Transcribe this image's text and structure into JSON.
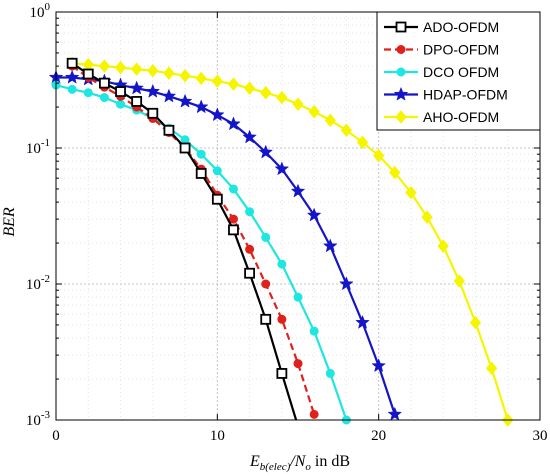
{
  "chart_data": {
    "type": "line",
    "title": "",
    "xlabel": "E_b(elec)/N_o in dB",
    "ylabel": "BER",
    "xlim": [
      0,
      30
    ],
    "ylim": [
      0.001,
      1
    ],
    "yscale": "log",
    "grid": true,
    "legend_position": "top-right",
    "x_ticks": [
      0,
      10,
      20,
      30
    ],
    "x_tick_labels": [
      "0",
      "10",
      "20",
      "30"
    ],
    "y_ticks": [
      0.001,
      0.01,
      0.1,
      1
    ],
    "series": [
      {
        "name": "ADO-OFDM",
        "color": "#000000",
        "line_style": "solid",
        "marker": "square-open",
        "x": [
          1,
          2,
          3,
          4,
          5,
          6,
          7,
          8,
          9,
          10,
          11,
          12,
          13,
          14,
          15
        ],
        "y": [
          0.42,
          0.35,
          0.3,
          0.26,
          0.22,
          0.18,
          0.135,
          0.1,
          0.065,
          0.042,
          0.025,
          0.012,
          0.0055,
          0.0022,
          0.0009
        ]
      },
      {
        "name": "DPO-OFDM",
        "color": "#e0201b",
        "line_style": "dashed",
        "marker": "circle-filled",
        "x": [
          1,
          2,
          3,
          4,
          5,
          6,
          7,
          8,
          9,
          10,
          11,
          12,
          13,
          14,
          15,
          16
        ],
        "y": [
          0.4,
          0.33,
          0.28,
          0.24,
          0.2,
          0.165,
          0.13,
          0.1,
          0.07,
          0.045,
          0.03,
          0.018,
          0.01,
          0.0055,
          0.0026,
          0.0011
        ]
      },
      {
        "name": "DCO OFDM",
        "color": "#1ee6e0",
        "line_style": "solid",
        "marker": "circle-filled",
        "x": [
          0,
          1,
          2,
          3,
          4,
          5,
          6,
          7,
          8,
          9,
          10,
          11,
          12,
          13,
          14,
          15,
          16,
          17,
          18
        ],
        "y": [
          0.29,
          0.27,
          0.255,
          0.235,
          0.21,
          0.19,
          0.165,
          0.14,
          0.115,
          0.09,
          0.068,
          0.05,
          0.034,
          0.022,
          0.014,
          0.008,
          0.0045,
          0.0022,
          0.001
        ]
      },
      {
        "name": "HDAP-OFDM",
        "color": "#1414c8",
        "line_style": "solid",
        "marker": "star-filled",
        "x": [
          0,
          1,
          2,
          3,
          4,
          5,
          6,
          7,
          8,
          9,
          10,
          11,
          12,
          13,
          14,
          15,
          16,
          17,
          18,
          19,
          20,
          21
        ],
        "y": [
          0.33,
          0.33,
          0.32,
          0.31,
          0.29,
          0.275,
          0.26,
          0.24,
          0.22,
          0.2,
          0.175,
          0.15,
          0.12,
          0.093,
          0.07,
          0.048,
          0.032,
          0.019,
          0.01,
          0.0052,
          0.0025,
          0.0011
        ]
      },
      {
        "name": "AHO-OFDM",
        "color": "#f5f500",
        "line_style": "solid",
        "marker": "diamond-filled",
        "x": [
          1,
          2,
          3,
          4,
          5,
          6,
          7,
          8,
          9,
          10,
          11,
          12,
          13,
          14,
          15,
          16,
          17,
          18,
          19,
          20,
          21,
          22,
          23,
          24,
          25,
          26,
          27,
          28
        ],
        "y": [
          0.42,
          0.41,
          0.4,
          0.39,
          0.38,
          0.37,
          0.355,
          0.34,
          0.325,
          0.31,
          0.295,
          0.275,
          0.255,
          0.235,
          0.21,
          0.185,
          0.16,
          0.135,
          0.11,
          0.088,
          0.066,
          0.047,
          0.031,
          0.019,
          0.0105,
          0.0052,
          0.0024,
          0.001
        ]
      }
    ]
  }
}
